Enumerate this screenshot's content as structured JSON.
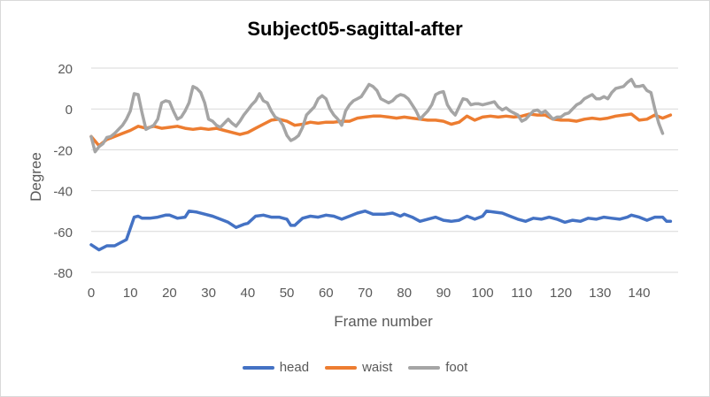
{
  "chart_data": {
    "type": "line",
    "title": "Subject05-sagittal-after",
    "xlabel": "Frame number",
    "ylabel": "Degree",
    "xlim": [
      0,
      149
    ],
    "ylim": [
      -80,
      20
    ],
    "xticks": [
      0,
      10,
      20,
      30,
      40,
      50,
      60,
      70,
      80,
      90,
      100,
      110,
      120,
      130,
      140
    ],
    "yticks": [
      -80,
      -60,
      -40,
      -20,
      0,
      20
    ],
    "grid": "horizontal",
    "legend_position": "bottom",
    "series": [
      {
        "name": "head",
        "color": "#4472C4",
        "points": [
          [
            0,
            -66.5
          ],
          [
            2,
            -69
          ],
          [
            4,
            -67
          ],
          [
            6,
            -67
          ],
          [
            9,
            -64
          ],
          [
            11,
            -53
          ],
          [
            12,
            -52.5
          ],
          [
            13,
            -53.5
          ],
          [
            15,
            -53.5
          ],
          [
            17,
            -53
          ],
          [
            19,
            -52
          ],
          [
            20,
            -52
          ],
          [
            22,
            -53.5
          ],
          [
            24,
            -53
          ],
          [
            25,
            -50
          ],
          [
            27,
            -50.5
          ],
          [
            29,
            -51.5
          ],
          [
            31,
            -52.5
          ],
          [
            33,
            -54
          ],
          [
            35,
            -55.5
          ],
          [
            37,
            -58
          ],
          [
            39,
            -56.5
          ],
          [
            40,
            -56
          ],
          [
            42,
            -52.5
          ],
          [
            44,
            -52
          ],
          [
            46,
            -53
          ],
          [
            48,
            -53
          ],
          [
            50,
            -54
          ],
          [
            51,
            -57
          ],
          [
            52,
            -57
          ],
          [
            54,
            -53.5
          ],
          [
            56,
            -52.5
          ],
          [
            58,
            -53
          ],
          [
            60,
            -52
          ],
          [
            62,
            -52.5
          ],
          [
            64,
            -54
          ],
          [
            66,
            -52.5
          ],
          [
            68,
            -51
          ],
          [
            70,
            -50
          ],
          [
            72,
            -51.5
          ],
          [
            75,
            -51.5
          ],
          [
            77,
            -51
          ],
          [
            79,
            -52.5
          ],
          [
            80,
            -51.5
          ],
          [
            82,
            -53
          ],
          [
            84,
            -55
          ],
          [
            86,
            -54
          ],
          [
            88,
            -53
          ],
          [
            90,
            -54.5
          ],
          [
            92,
            -55
          ],
          [
            94,
            -54.5
          ],
          [
            96,
            -52.5
          ],
          [
            98,
            -54
          ],
          [
            100,
            -52.5
          ],
          [
            101,
            -50
          ],
          [
            103,
            -50.5
          ],
          [
            105,
            -51
          ],
          [
            107,
            -52.5
          ],
          [
            109,
            -54
          ],
          [
            111,
            -55
          ],
          [
            113,
            -53.5
          ],
          [
            115,
            -54
          ],
          [
            117,
            -53
          ],
          [
            119,
            -54
          ],
          [
            121,
            -55.5
          ],
          [
            123,
            -54.5
          ],
          [
            125,
            -55
          ],
          [
            127,
            -53.5
          ],
          [
            129,
            -54
          ],
          [
            131,
            -53
          ],
          [
            133,
            -53.5
          ],
          [
            135,
            -54
          ],
          [
            137,
            -53
          ],
          [
            138,
            -52
          ],
          [
            140,
            -53
          ],
          [
            142,
            -54.5
          ],
          [
            144,
            -53
          ],
          [
            146,
            -53
          ],
          [
            147,
            -55
          ],
          [
            148,
            -55
          ]
        ]
      },
      {
        "name": "waist",
        "color": "#ED7D31",
        "points": [
          [
            0,
            -13.5
          ],
          [
            2,
            -18
          ],
          [
            4,
            -15
          ],
          [
            6,
            -13.5
          ],
          [
            8,
            -12
          ],
          [
            10,
            -10.5
          ],
          [
            12,
            -8.5
          ],
          [
            14,
            -9.5
          ],
          [
            16,
            -8.5
          ],
          [
            18,
            -9.5
          ],
          [
            20,
            -9
          ],
          [
            22,
            -8.5
          ],
          [
            24,
            -9.5
          ],
          [
            26,
            -10
          ],
          [
            28,
            -9.5
          ],
          [
            30,
            -10
          ],
          [
            32,
            -9.5
          ],
          [
            34,
            -10.5
          ],
          [
            36,
            -11.5
          ],
          [
            38,
            -12.5
          ],
          [
            40,
            -11.5
          ],
          [
            42,
            -9.5
          ],
          [
            44,
            -7.5
          ],
          [
            46,
            -5.5
          ],
          [
            48,
            -5
          ],
          [
            50,
            -6
          ],
          [
            52,
            -8
          ],
          [
            54,
            -7.5
          ],
          [
            56,
            -6.5
          ],
          [
            58,
            -7
          ],
          [
            60,
            -6.5
          ],
          [
            62,
            -6.5
          ],
          [
            64,
            -6
          ],
          [
            66,
            -6
          ],
          [
            68,
            -4.5
          ],
          [
            70,
            -4
          ],
          [
            72,
            -3.5
          ],
          [
            74,
            -3.5
          ],
          [
            76,
            -4
          ],
          [
            78,
            -4.5
          ],
          [
            80,
            -4
          ],
          [
            82,
            -4.5
          ],
          [
            84,
            -5
          ],
          [
            86,
            -5.5
          ],
          [
            88,
            -5.5
          ],
          [
            90,
            -6
          ],
          [
            92,
            -7.5
          ],
          [
            94,
            -6.5
          ],
          [
            96,
            -3.5
          ],
          [
            98,
            -5.5
          ],
          [
            100,
            -4
          ],
          [
            102,
            -3.5
          ],
          [
            104,
            -4
          ],
          [
            106,
            -3.5
          ],
          [
            108,
            -4
          ],
          [
            110,
            -3.5
          ],
          [
            112,
            -2.5
          ],
          [
            114,
            -3
          ],
          [
            116,
            -3
          ],
          [
            118,
            -5
          ],
          [
            120,
            -5.5
          ],
          [
            122,
            -5.5
          ],
          [
            124,
            -6
          ],
          [
            126,
            -5
          ],
          [
            128,
            -4.5
          ],
          [
            130,
            -5
          ],
          [
            132,
            -4.5
          ],
          [
            134,
            -3.5
          ],
          [
            136,
            -3
          ],
          [
            138,
            -2.5
          ],
          [
            140,
            -5.5
          ],
          [
            142,
            -5
          ],
          [
            144,
            -3
          ],
          [
            146,
            -4.5
          ],
          [
            148,
            -3
          ]
        ]
      },
      {
        "name": "foot",
        "color": "#A5A5A5",
        "points": [
          [
            0,
            -13.5
          ],
          [
            1,
            -21
          ],
          [
            2,
            -18.5
          ],
          [
            3,
            -17
          ],
          [
            4,
            -14
          ],
          [
            5,
            -13.5
          ],
          [
            6,
            -12
          ],
          [
            7,
            -10
          ],
          [
            8,
            -8
          ],
          [
            9,
            -5
          ],
          [
            10,
            -1
          ],
          [
            11,
            7.5
          ],
          [
            12,
            7
          ],
          [
            13,
            -2
          ],
          [
            14,
            -10
          ],
          [
            15,
            -9
          ],
          [
            16,
            -8
          ],
          [
            17,
            -5
          ],
          [
            18,
            3
          ],
          [
            19,
            4
          ],
          [
            20,
            3.5
          ],
          [
            21,
            -1
          ],
          [
            22,
            -5
          ],
          [
            23,
            -4
          ],
          [
            24,
            -1
          ],
          [
            25,
            3
          ],
          [
            26,
            11
          ],
          [
            27,
            10
          ],
          [
            28,
            8
          ],
          [
            29,
            3
          ],
          [
            30,
            -5
          ],
          [
            31,
            -6
          ],
          [
            32,
            -8
          ],
          [
            33,
            -9
          ],
          [
            34,
            -7
          ],
          [
            35,
            -5
          ],
          [
            36,
            -7
          ],
          [
            37,
            -8.5
          ],
          [
            38,
            -6
          ],
          [
            39,
            -3
          ],
          [
            40,
            -0.5
          ],
          [
            41,
            2
          ],
          [
            42,
            4
          ],
          [
            43,
            7.5
          ],
          [
            44,
            4
          ],
          [
            45,
            3
          ],
          [
            46,
            -1
          ],
          [
            47,
            -4
          ],
          [
            48,
            -5
          ],
          [
            49,
            -8
          ],
          [
            50,
            -13
          ],
          [
            51,
            -15.5
          ],
          [
            52,
            -14.5
          ],
          [
            53,
            -13
          ],
          [
            54,
            -9
          ],
          [
            55,
            -3
          ],
          [
            56,
            -1
          ],
          [
            57,
            1
          ],
          [
            58,
            5
          ],
          [
            59,
            6.5
          ],
          [
            60,
            5
          ],
          [
            61,
            0
          ],
          [
            62,
            -3
          ],
          [
            63,
            -5
          ],
          [
            64,
            -8
          ],
          [
            65,
            -1
          ],
          [
            66,
            2
          ],
          [
            67,
            4
          ],
          [
            68,
            5
          ],
          [
            69,
            6
          ],
          [
            70,
            9
          ],
          [
            71,
            12
          ],
          [
            72,
            11
          ],
          [
            73,
            9
          ],
          [
            74,
            5
          ],
          [
            75,
            4
          ],
          [
            76,
            3
          ],
          [
            77,
            4
          ],
          [
            78,
            6
          ],
          [
            79,
            7
          ],
          [
            80,
            6.5
          ],
          [
            81,
            5
          ],
          [
            82,
            2
          ],
          [
            83,
            -1
          ],
          [
            84,
            -5
          ],
          [
            85,
            -3
          ],
          [
            86,
            -1
          ],
          [
            87,
            2
          ],
          [
            88,
            7
          ],
          [
            89,
            8
          ],
          [
            90,
            8.5
          ],
          [
            91,
            2
          ],
          [
            92,
            -1
          ],
          [
            93,
            -3
          ],
          [
            94,
            1
          ],
          [
            95,
            5
          ],
          [
            96,
            4.5
          ],
          [
            97,
            2
          ],
          [
            98,
            2.5
          ],
          [
            99,
            2.5
          ],
          [
            100,
            2
          ],
          [
            101,
            2.5
          ],
          [
            102,
            3
          ],
          [
            103,
            3.5
          ],
          [
            104,
            1
          ],
          [
            105,
            -0.5
          ],
          [
            106,
            0.5
          ],
          [
            107,
            -1
          ],
          [
            108,
            -2
          ],
          [
            109,
            -3
          ],
          [
            110,
            -6
          ],
          [
            111,
            -5
          ],
          [
            112,
            -3
          ],
          [
            113,
            -1
          ],
          [
            114,
            -0.5
          ],
          [
            115,
            -2
          ],
          [
            116,
            -1
          ],
          [
            117,
            -3
          ],
          [
            118,
            -5
          ],
          [
            119,
            -4
          ],
          [
            120,
            -4
          ],
          [
            121,
            -2.5
          ],
          [
            122,
            -2
          ],
          [
            123,
            0
          ],
          [
            124,
            2
          ],
          [
            125,
            3
          ],
          [
            126,
            5
          ],
          [
            127,
            6
          ],
          [
            128,
            7
          ],
          [
            129,
            5
          ],
          [
            130,
            5
          ],
          [
            131,
            6
          ],
          [
            132,
            5
          ],
          [
            133,
            8
          ],
          [
            134,
            10
          ],
          [
            135,
            10.5
          ],
          [
            136,
            11
          ],
          [
            137,
            13
          ],
          [
            138,
            14.5
          ],
          [
            139,
            11
          ],
          [
            140,
            11
          ],
          [
            141,
            11.5
          ],
          [
            142,
            9
          ],
          [
            143,
            8
          ],
          [
            144,
            0
          ],
          [
            145,
            -7
          ],
          [
            146,
            -12
          ]
        ]
      }
    ]
  }
}
